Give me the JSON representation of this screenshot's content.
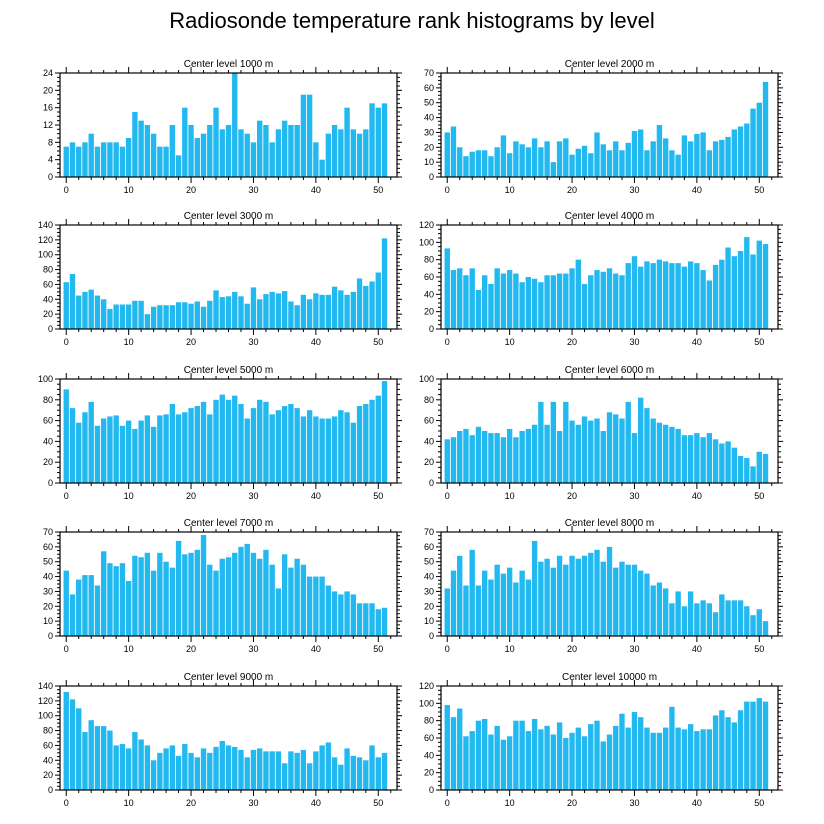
{
  "title": "Radiosonde temperature rank histograms by level",
  "colors": {
    "bar": "#22b8f0",
    "axis": "#000000",
    "background": "#ffffff"
  },
  "chart_data": [
    {
      "type": "bar",
      "title": "Center level 1000 m",
      "xlim": [
        -1,
        53
      ],
      "ylim": [
        0,
        24
      ],
      "xticks": [
        0,
        10,
        20,
        30,
        40,
        50
      ],
      "yticks": [
        0,
        4,
        8,
        12,
        16,
        20,
        24
      ],
      "values": [
        7,
        8,
        7,
        8,
        10,
        7,
        8,
        8,
        8,
        7,
        9,
        15,
        13,
        12,
        10,
        7,
        7,
        12,
        5,
        16,
        12,
        9,
        10,
        12,
        16,
        11,
        12,
        24,
        11,
        10,
        8,
        13,
        12,
        8,
        11,
        13,
        12,
        12,
        19,
        19,
        8,
        4,
        10,
        12,
        11,
        16,
        11,
        10,
        11,
        17,
        16,
        17
      ]
    },
    {
      "type": "bar",
      "title": "Center level 2000 m",
      "xlim": [
        -1,
        53
      ],
      "ylim": [
        0,
        70
      ],
      "xticks": [
        0,
        10,
        20,
        30,
        40,
        50
      ],
      "yticks": [
        0,
        10,
        20,
        30,
        40,
        50,
        60,
        70
      ],
      "values": [
        30,
        34,
        20,
        14,
        17,
        18,
        18,
        14,
        20,
        28,
        16,
        24,
        22,
        20,
        26,
        20,
        24,
        10,
        24,
        26,
        15,
        19,
        21,
        16,
        30,
        22,
        18,
        24,
        18,
        23,
        31,
        32,
        18,
        24,
        35,
        26,
        18,
        15,
        28,
        24,
        29,
        30,
        18,
        24,
        25,
        27,
        32,
        34,
        36,
        46,
        50,
        64
      ]
    },
    {
      "type": "bar",
      "title": "Center level 3000 m",
      "xlim": [
        -1,
        53
      ],
      "ylim": [
        0,
        140
      ],
      "xticks": [
        0,
        10,
        20,
        30,
        40,
        50
      ],
      "yticks": [
        0,
        20,
        40,
        60,
        80,
        100,
        120,
        140
      ],
      "values": [
        63,
        74,
        45,
        50,
        53,
        45,
        40,
        27,
        33,
        33,
        33,
        38,
        38,
        20,
        30,
        32,
        32,
        32,
        36,
        36,
        34,
        37,
        30,
        38,
        52,
        43,
        44,
        50,
        44,
        34,
        56,
        40,
        47,
        50,
        48,
        51,
        37,
        32,
        46,
        40,
        48,
        46,
        46,
        57,
        52,
        46,
        50,
        68,
        58,
        64,
        76,
        122
      ]
    },
    {
      "type": "bar",
      "title": "Center level 4000 m",
      "xlim": [
        -1,
        53
      ],
      "ylim": [
        0,
        120
      ],
      "xticks": [
        0,
        10,
        20,
        30,
        40,
        50
      ],
      "yticks": [
        0,
        20,
        40,
        60,
        80,
        100,
        120
      ],
      "values": [
        93,
        68,
        70,
        62,
        70,
        45,
        62,
        52,
        70,
        64,
        68,
        64,
        54,
        60,
        58,
        54,
        62,
        62,
        64,
        64,
        70,
        80,
        52,
        62,
        68,
        66,
        70,
        64,
        62,
        76,
        84,
        72,
        78,
        76,
        80,
        78,
        76,
        76,
        72,
        78,
        76,
        68,
        56,
        74,
        80,
        94,
        84,
        90,
        106,
        86,
        102,
        98
      ]
    },
    {
      "type": "bar",
      "title": "Center level 5000 m",
      "xlim": [
        -1,
        53
      ],
      "ylim": [
        0,
        100
      ],
      "xticks": [
        0,
        10,
        20,
        30,
        40,
        50
      ],
      "yticks": [
        0,
        20,
        40,
        60,
        80,
        100
      ],
      "values": [
        90,
        72,
        58,
        68,
        78,
        55,
        62,
        64,
        65,
        55,
        60,
        52,
        60,
        65,
        54,
        65,
        66,
        76,
        66,
        68,
        72,
        74,
        78,
        66,
        80,
        85,
        80,
        84,
        76,
        62,
        72,
        80,
        78,
        66,
        70,
        74,
        76,
        72,
        64,
        70,
        64,
        62,
        62,
        64,
        70,
        68,
        58,
        74,
        76,
        80,
        84,
        98
      ]
    },
    {
      "type": "bar",
      "title": "Center level 6000 m",
      "xlim": [
        -1,
        53
      ],
      "ylim": [
        0,
        100
      ],
      "xticks": [
        0,
        10,
        20,
        30,
        40,
        50
      ],
      "yticks": [
        0,
        20,
        40,
        60,
        80,
        100
      ],
      "values": [
        42,
        44,
        50,
        52,
        46,
        54,
        50,
        48,
        48,
        44,
        52,
        44,
        50,
        52,
        56,
        78,
        56,
        78,
        50,
        78,
        60,
        56,
        64,
        60,
        62,
        50,
        68,
        66,
        62,
        78,
        48,
        82,
        72,
        62,
        58,
        56,
        54,
        52,
        46,
        46,
        48,
        44,
        48,
        42,
        38,
        40,
        34,
        26,
        24,
        16,
        30,
        28
      ]
    },
    {
      "type": "bar",
      "title": "Center level 7000 m",
      "xlim": [
        -1,
        53
      ],
      "ylim": [
        0,
        70
      ],
      "xticks": [
        0,
        10,
        20,
        30,
        40,
        50
      ],
      "yticks": [
        0,
        10,
        20,
        30,
        40,
        50,
        60,
        70
      ],
      "values": [
        44,
        28,
        38,
        41,
        41,
        34,
        57,
        49,
        47,
        49,
        37,
        54,
        53,
        56,
        44,
        56,
        50,
        46,
        64,
        55,
        56,
        58,
        68,
        48,
        44,
        52,
        53,
        56,
        60,
        62,
        56,
        52,
        58,
        48,
        32,
        55,
        46,
        52,
        48,
        40,
        40,
        40,
        34,
        30,
        28,
        30,
        28,
        22,
        22,
        22,
        18,
        19
      ]
    },
    {
      "type": "bar",
      "title": "Center level 8000 m",
      "xlim": [
        -1,
        53
      ],
      "ylim": [
        0,
        70
      ],
      "xticks": [
        0,
        10,
        20,
        30,
        40,
        50
      ],
      "yticks": [
        0,
        10,
        20,
        30,
        40,
        50,
        60,
        70
      ],
      "values": [
        32,
        44,
        54,
        34,
        58,
        34,
        44,
        38,
        48,
        42,
        46,
        36,
        44,
        38,
        64,
        50,
        52,
        46,
        54,
        48,
        54,
        52,
        54,
        56,
        58,
        50,
        60,
        46,
        50,
        48,
        48,
        44,
        42,
        34,
        36,
        32,
        22,
        30,
        20,
        30,
        22,
        24,
        22,
        16,
        28,
        24,
        24,
        24,
        20,
        14,
        18,
        10
      ]
    },
    {
      "type": "bar",
      "title": "Center level 9000 m",
      "xlim": [
        -1,
        53
      ],
      "ylim": [
        0,
        140
      ],
      "xticks": [
        0,
        10,
        20,
        30,
        40,
        50
      ],
      "yticks": [
        0,
        20,
        40,
        60,
        80,
        100,
        120,
        140
      ],
      "values": [
        132,
        122,
        110,
        78,
        94,
        86,
        86,
        80,
        60,
        62,
        56,
        78,
        68,
        60,
        40,
        50,
        56,
        60,
        46,
        62,
        50,
        44,
        56,
        50,
        58,
        66,
        60,
        58,
        54,
        44,
        54,
        56,
        52,
        52,
        52,
        36,
        52,
        50,
        54,
        36,
        52,
        60,
        64,
        44,
        34,
        56,
        46,
        44,
        40,
        60,
        44,
        50
      ]
    },
    {
      "type": "bar",
      "title": "Center level 10000 m",
      "xlim": [
        -1,
        53
      ],
      "ylim": [
        0,
        120
      ],
      "xticks": [
        0,
        10,
        20,
        30,
        40,
        50
      ],
      "yticks": [
        0,
        20,
        40,
        60,
        80,
        100,
        120
      ],
      "values": [
        98,
        84,
        94,
        62,
        68,
        80,
        82,
        64,
        74,
        58,
        62,
        80,
        80,
        68,
        82,
        70,
        74,
        64,
        78,
        60,
        66,
        72,
        62,
        76,
        80,
        56,
        64,
        74,
        88,
        72,
        90,
        84,
        72,
        66,
        66,
        72,
        96,
        72,
        70,
        76,
        68,
        70,
        70,
        86,
        92,
        84,
        78,
        92,
        102,
        102,
        106,
        102
      ]
    }
  ]
}
